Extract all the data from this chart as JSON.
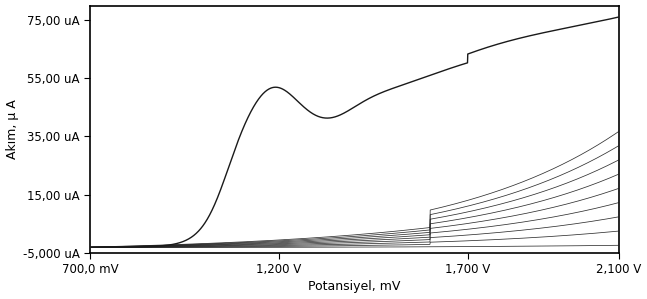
{
  "xlabel": "Potansiyel, mV",
  "ylabel": "Akım, µ A",
  "xlim": [
    700,
    2100
  ],
  "ylim": [
    -5000,
    80000
  ],
  "yticks": [
    -5000,
    15000,
    35000,
    55000,
    75000
  ],
  "ytick_labels": [
    "-5,000 uA",
    "15,00 uA",
    "35,00 uA",
    "55,00 uA",
    "75,00 uA"
  ],
  "xticks": [
    700,
    1200,
    1700,
    2100
  ],
  "xtick_labels": [
    "700,0 mV",
    "1,200 V",
    "1,700 V",
    "2,100 V"
  ],
  "line_color": "#1a1a1a",
  "background_color": "#ffffff",
  "fig_background": "#ffffff",
  "n_cycles": 10,
  "first_scan_lw": 1.0,
  "subsequent_lw": 0.55
}
